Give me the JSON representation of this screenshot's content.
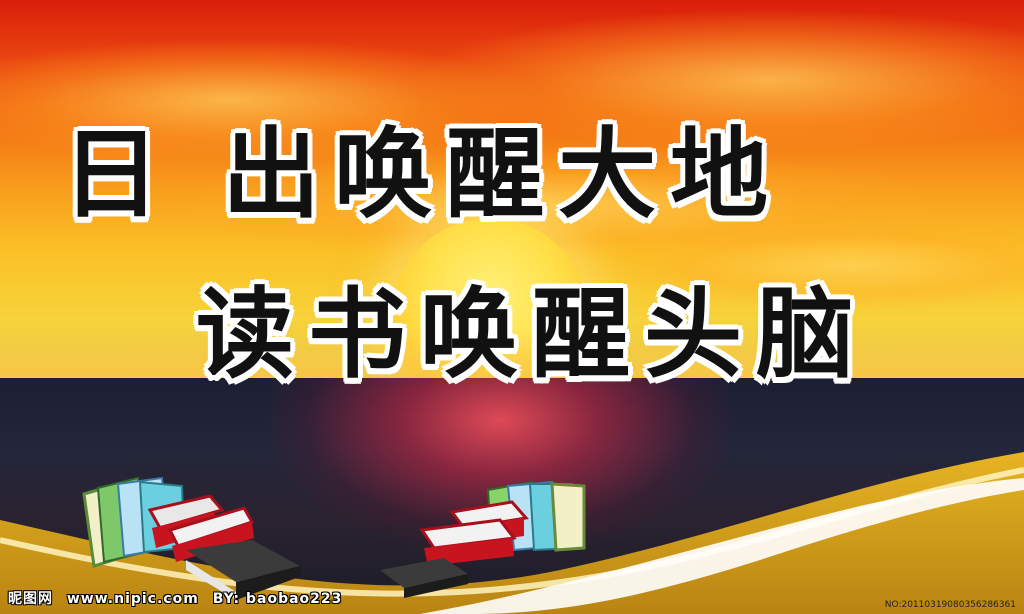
{
  "headline": {
    "line1": "日 出唤醒大地",
    "line2": "读书唤醒头脑"
  },
  "watermark": {
    "site_name": "昵图网",
    "site_url": "www.nipic.com",
    "author": "BY: baobao223",
    "image_no": "NO:20110319080356286361"
  },
  "colors": {
    "sky_top": "#d81e0a",
    "sky_mid": "#f89a1c",
    "sun": "#ffe04a",
    "sea": "#1c1f33",
    "sand": "#d9a21a",
    "text": "#111111",
    "text_outline": "#ffffff"
  },
  "scene": {
    "elements": [
      "sunset-sky",
      "rising-sun",
      "sea",
      "book-stack-left",
      "book-stack-right",
      "golden-wave"
    ]
  }
}
